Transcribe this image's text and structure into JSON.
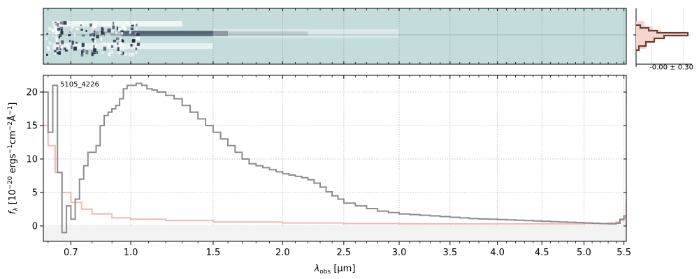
{
  "chart_data": {
    "type": "line",
    "object_id": "5105_4226",
    "xlabel_main": "λ",
    "xlabel_sub": "obs",
    "xlabel_unit": " [μm]",
    "ylabel_prefix": "f",
    "ylabel_sub": "λ",
    "ylabel_b1": " [10",
    "ylabel_sup1": "−20",
    "ylabel_b2": " ergs",
    "ylabel_sup2": "−1",
    "ylabel_b3": "cm",
    "ylabel_sup3": "−2",
    "ylabel_b4": "Å",
    "ylabel_sup4": "−1",
    "ylabel_b5": "]",
    "x_ticks": [
      0.7,
      1.0,
      1.5,
      2.0,
      2.5,
      3.0,
      3.5,
      4.0,
      4.5,
      5.0,
      5.5
    ],
    "x_tick_labels": [
      "0.7",
      "1.0",
      "1.5",
      "2.0",
      "2.5",
      "3.0",
      "3.5",
      "4.0",
      "4.5",
      "5.0",
      "5.5"
    ],
    "xlim": [
      0.58,
      5.53
    ],
    "y_ticks": [
      0,
      5,
      10,
      15,
      20
    ],
    "y_tick_labels": [
      "0",
      "5",
      "10",
      "15",
      "20"
    ],
    "ylim": [
      -2.3,
      22.5
    ],
    "grid": true,
    "colors": {
      "spectrum": "#8c8c8c",
      "error": "#f4b8b2",
      "image_bg": "#c5dcdc",
      "trace_dark": "#1c2840",
      "hist_line": "#6b3c2e",
      "hist_fill": "#f7d5cf"
    },
    "series": [
      {
        "role": "flux",
        "x": [
          0.58,
          0.6,
          0.62,
          0.64,
          0.66,
          0.68,
          0.7,
          0.72,
          0.74,
          0.76,
          0.78,
          0.8,
          0.82,
          0.84,
          0.86,
          0.88,
          0.9,
          0.92,
          0.94,
          0.96,
          0.98,
          1.0,
          1.03,
          1.06,
          1.09,
          1.12,
          1.15,
          1.2,
          1.25,
          1.3,
          1.35,
          1.4,
          1.45,
          1.5,
          1.55,
          1.6,
          1.65,
          1.7,
          1.75,
          1.8,
          1.85,
          1.9,
          1.95,
          2.0,
          2.05,
          2.1,
          2.15,
          2.2,
          2.25,
          2.3,
          2.35,
          2.4,
          2.45,
          2.5,
          2.6,
          2.7,
          2.8,
          2.9,
          3.0,
          3.1,
          3.2,
          3.3,
          3.4,
          3.5,
          3.6,
          3.7,
          3.8,
          3.9,
          4.0,
          4.1,
          4.2,
          4.3,
          4.4,
          4.5,
          4.6,
          4.7,
          4.8,
          4.9,
          5.0,
          5.1,
          5.2,
          5.3,
          5.4,
          5.45,
          5.5,
          5.53
        ],
        "y": [
          20.0,
          14.0,
          21.0,
          8.0,
          -1.0,
          3.0,
          1.0,
          4.0,
          7.0,
          9.0,
          11.0,
          11.0,
          12.0,
          15.0,
          16.5,
          17.0,
          17.5,
          18.0,
          19.0,
          20.5,
          21.0,
          21.0,
          21.3,
          21.0,
          20.5,
          20.3,
          20.0,
          19.5,
          19.0,
          18.0,
          17.0,
          16.0,
          15.0,
          14.0,
          13.0,
          12.0,
          11.0,
          10.0,
          9.3,
          9.0,
          8.7,
          8.4,
          8.1,
          7.8,
          7.6,
          7.4,
          7.2,
          6.9,
          6.4,
          5.8,
          5.1,
          4.5,
          4.0,
          3.4,
          3.0,
          2.6,
          2.2,
          2.0,
          1.8,
          1.7,
          1.6,
          1.5,
          1.4,
          1.3,
          1.2,
          1.1,
          1.05,
          1.0,
          0.95,
          0.9,
          0.85,
          0.8,
          0.75,
          0.7,
          0.65,
          0.6,
          0.55,
          0.5,
          0.45,
          0.4,
          0.35,
          0.3,
          0.4,
          1.0,
          1.5,
          0.0
        ]
      },
      {
        "role": "uncertainty",
        "x": [
          0.58,
          0.6,
          0.63,
          0.66,
          0.7,
          0.75,
          0.8,
          0.9,
          1.0,
          1.2,
          1.5,
          2.0,
          2.5,
          3.0,
          3.5,
          4.0,
          4.5,
          5.0,
          5.3,
          5.4,
          5.45,
          5.5,
          5.53
        ],
        "y": [
          15.0,
          12.0,
          8.0,
          5.0,
          3.5,
          2.5,
          1.8,
          1.2,
          1.0,
          0.8,
          0.6,
          0.45,
          0.35,
          0.3,
          0.3,
          0.3,
          0.3,
          0.35,
          0.45,
          0.6,
          0.8,
          1.2,
          3.5
        ]
      }
    ],
    "hist": {
      "annotation": "-0.00 ± 0.30"
    }
  }
}
